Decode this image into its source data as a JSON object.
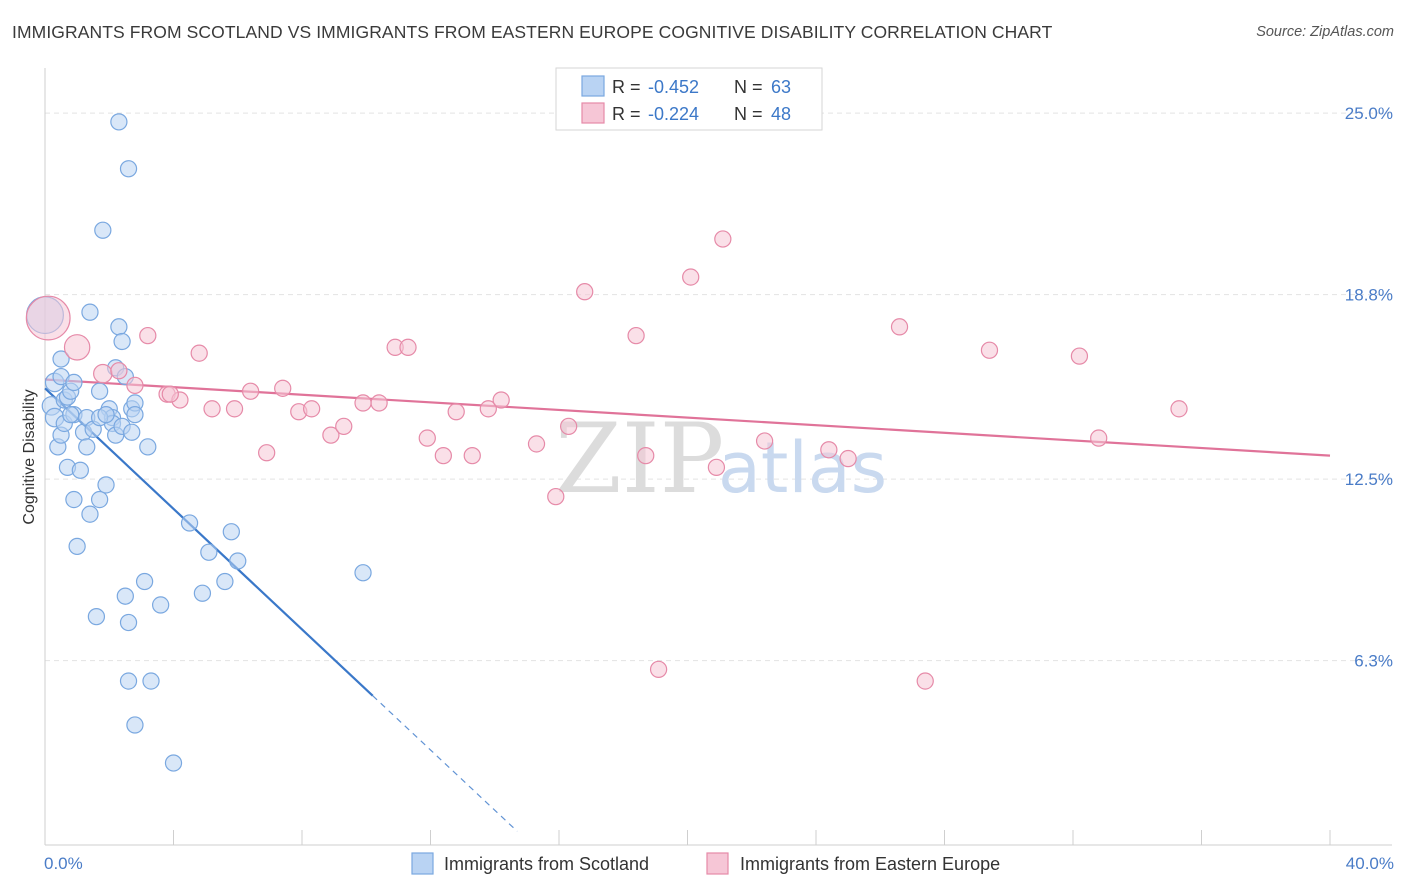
{
  "title": "IMMIGRANTS FROM SCOTLAND VS IMMIGRANTS FROM EASTERN EUROPE COGNITIVE DISABILITY CORRELATION CHART",
  "source": "Source: ZipAtlas.com",
  "watermark": {
    "part1": "ZIP",
    "part2": "atlas"
  },
  "colors": {
    "blue": "#7aa8e0",
    "blue_fill": "#b9d3f3",
    "blue_line": "#3a78c9",
    "pink": "#e68aa8",
    "pink_fill": "#f6c6d6",
    "pink_line": "#e07399",
    "axis_text": "#4a7cc7",
    "grid": "#e3e3e3"
  },
  "legend": {
    "rows": [
      {
        "r_label": "R = ",
        "r_value": "-0.452",
        "n_label": "N = ",
        "n_value": "63"
      },
      {
        "r_label": "R = ",
        "r_value": "-0.224",
        "n_label": "N = ",
        "n_value": "48"
      }
    ]
  },
  "chart_data": {
    "type": "scatter",
    "title": "IMMIGRANTS FROM SCOTLAND VS IMMIGRANTS FROM EASTERN EUROPE COGNITIVE DISABILITY CORRELATION CHART",
    "xlabel": "",
    "ylabel": "Cognitive Disability",
    "xlim": [
      0,
      40
    ],
    "ylim": [
      0,
      26.2
    ],
    "x_tick_labels": [
      "0.0%",
      "40.0%"
    ],
    "y_ticks": [
      6.3,
      12.5,
      18.8,
      25.0
    ],
    "y_tick_labels": [
      "6.3%",
      "12.5%",
      "18.8%",
      "25.0%"
    ],
    "legend_position": "top-center",
    "series": [
      {
        "name": "Immigrants from Scotland",
        "color": "blue",
        "r": -0.452,
        "n": 63,
        "trend": {
          "x1": 0.0,
          "y1": 15.6,
          "x2": 10.2,
          "y2": 5.1,
          "dash_x2": 14.7
        },
        "points": [
          [
            0.0,
            18.1,
            1.6
          ],
          [
            0.2,
            15.0,
            0.8
          ],
          [
            0.3,
            15.8,
            0.8
          ],
          [
            0.3,
            14.6,
            0.8
          ],
          [
            0.4,
            13.6,
            0.7
          ],
          [
            0.5,
            16.6,
            0.7
          ],
          [
            0.5,
            16.0,
            0.7
          ],
          [
            0.5,
            14.0,
            0.7
          ],
          [
            0.6,
            15.2,
            0.7
          ],
          [
            0.6,
            14.4,
            0.7
          ],
          [
            0.7,
            12.9,
            0.7
          ],
          [
            0.7,
            15.3,
            0.7
          ],
          [
            0.8,
            15.5,
            0.7
          ],
          [
            0.9,
            15.8,
            0.7
          ],
          [
            0.9,
            14.7,
            0.7
          ],
          [
            0.9,
            11.8,
            0.7
          ],
          [
            1.0,
            10.2,
            0.7
          ],
          [
            1.1,
            12.8,
            0.7
          ],
          [
            1.2,
            14.1,
            0.7
          ],
          [
            1.3,
            13.6,
            0.7
          ],
          [
            1.3,
            14.6,
            0.7
          ],
          [
            1.4,
            11.3,
            0.7
          ],
          [
            1.4,
            18.2,
            0.7
          ],
          [
            1.5,
            14.2,
            0.7
          ],
          [
            1.6,
            7.8,
            0.7
          ],
          [
            1.7,
            15.5,
            0.7
          ],
          [
            1.7,
            11.8,
            0.7
          ],
          [
            1.8,
            21.0,
            0.7
          ],
          [
            1.9,
            12.3,
            0.7
          ],
          [
            2.0,
            14.9,
            0.7
          ],
          [
            2.1,
            14.6,
            0.7
          ],
          [
            2.1,
            14.4,
            0.7
          ],
          [
            2.2,
            14.0,
            0.7
          ],
          [
            2.2,
            16.3,
            0.7
          ],
          [
            2.3,
            17.7,
            0.7
          ],
          [
            2.3,
            24.7,
            0.7
          ],
          [
            2.4,
            17.2,
            0.7
          ],
          [
            2.4,
            14.3,
            0.7
          ],
          [
            2.5,
            16.0,
            0.7
          ],
          [
            2.5,
            8.5,
            0.7
          ],
          [
            2.6,
            5.6,
            0.7
          ],
          [
            2.6,
            7.6,
            0.7
          ],
          [
            2.6,
            23.1,
            0.7
          ],
          [
            2.7,
            14.9,
            0.7
          ],
          [
            2.7,
            14.1,
            0.7
          ],
          [
            2.8,
            15.1,
            0.7
          ],
          [
            2.8,
            4.1,
            0.7
          ],
          [
            2.8,
            14.7,
            0.7
          ],
          [
            3.1,
            9.0,
            0.7
          ],
          [
            3.2,
            13.6,
            0.7
          ],
          [
            3.3,
            5.6,
            0.7
          ],
          [
            3.6,
            8.2,
            0.7
          ],
          [
            4.0,
            2.8,
            0.7
          ],
          [
            4.5,
            11.0,
            0.7
          ],
          [
            4.9,
            8.6,
            0.7
          ],
          [
            5.1,
            10.0,
            0.7
          ],
          [
            5.6,
            9.0,
            0.7
          ],
          [
            5.8,
            10.7,
            0.7
          ],
          [
            6.0,
            9.7,
            0.7
          ],
          [
            9.9,
            9.3,
            0.7
          ],
          [
            1.7,
            14.6,
            0.7
          ],
          [
            0.8,
            14.7,
            0.7
          ],
          [
            1.9,
            14.7,
            0.7
          ]
        ]
      },
      {
        "name": "Immigrants from Eastern Europe",
        "color": "pink",
        "r": -0.224,
        "n": 48,
        "trend": {
          "x1": 0.0,
          "y1": 15.9,
          "x2": 40.0,
          "y2": 13.3
        },
        "points": [
          [
            0.1,
            18.0,
            1.9
          ],
          [
            1.0,
            17.0,
            1.1
          ],
          [
            1.8,
            16.1,
            0.8
          ],
          [
            2.3,
            16.2,
            0.7
          ],
          [
            2.8,
            15.7,
            0.7
          ],
          [
            3.2,
            17.4,
            0.7
          ],
          [
            3.8,
            15.4,
            0.7
          ],
          [
            4.2,
            15.2,
            0.7
          ],
          [
            4.8,
            16.8,
            0.7
          ],
          [
            5.2,
            14.9,
            0.7
          ],
          [
            5.9,
            14.9,
            0.7
          ],
          [
            6.4,
            15.5,
            0.7
          ],
          [
            6.9,
            13.4,
            0.7
          ],
          [
            7.4,
            15.6,
            0.7
          ],
          [
            7.9,
            14.8,
            0.7
          ],
          [
            8.3,
            14.9,
            0.7
          ],
          [
            8.9,
            14.0,
            0.7
          ],
          [
            9.3,
            14.3,
            0.7
          ],
          [
            9.9,
            15.1,
            0.7
          ],
          [
            10.4,
            15.1,
            0.7
          ],
          [
            10.9,
            17.0,
            0.7
          ],
          [
            11.3,
            17.0,
            0.7
          ],
          [
            11.9,
            13.9,
            0.7
          ],
          [
            12.4,
            13.3,
            0.7
          ],
          [
            12.8,
            14.8,
            0.7
          ],
          [
            13.3,
            13.3,
            0.7
          ],
          [
            13.8,
            14.9,
            0.7
          ],
          [
            14.2,
            15.2,
            0.7
          ],
          [
            15.3,
            13.7,
            0.7
          ],
          [
            15.9,
            11.9,
            0.7
          ],
          [
            16.3,
            14.3,
            0.7
          ],
          [
            16.8,
            18.9,
            0.7
          ],
          [
            18.4,
            17.4,
            0.7
          ],
          [
            18.7,
            13.3,
            0.7
          ],
          [
            19.1,
            6.0,
            0.7
          ],
          [
            20.1,
            19.4,
            0.7
          ],
          [
            20.9,
            12.9,
            0.7
          ],
          [
            21.1,
            20.7,
            0.7
          ],
          [
            22.4,
            13.8,
            0.7
          ],
          [
            24.4,
            13.5,
            0.7
          ],
          [
            25.0,
            13.2,
            0.7
          ],
          [
            26.6,
            17.7,
            0.7
          ],
          [
            27.4,
            5.6,
            0.7
          ],
          [
            29.4,
            16.9,
            0.7
          ],
          [
            32.2,
            16.7,
            0.7
          ],
          [
            32.8,
            13.9,
            0.7
          ],
          [
            35.3,
            14.9,
            0.7
          ],
          [
            3.9,
            15.4,
            0.7
          ]
        ]
      }
    ]
  },
  "bottom_legend": {
    "items": [
      {
        "label": "Immigrants from Scotland",
        "color": "blue"
      },
      {
        "label": "Immigrants from Eastern Europe",
        "color": "pink"
      }
    ]
  }
}
